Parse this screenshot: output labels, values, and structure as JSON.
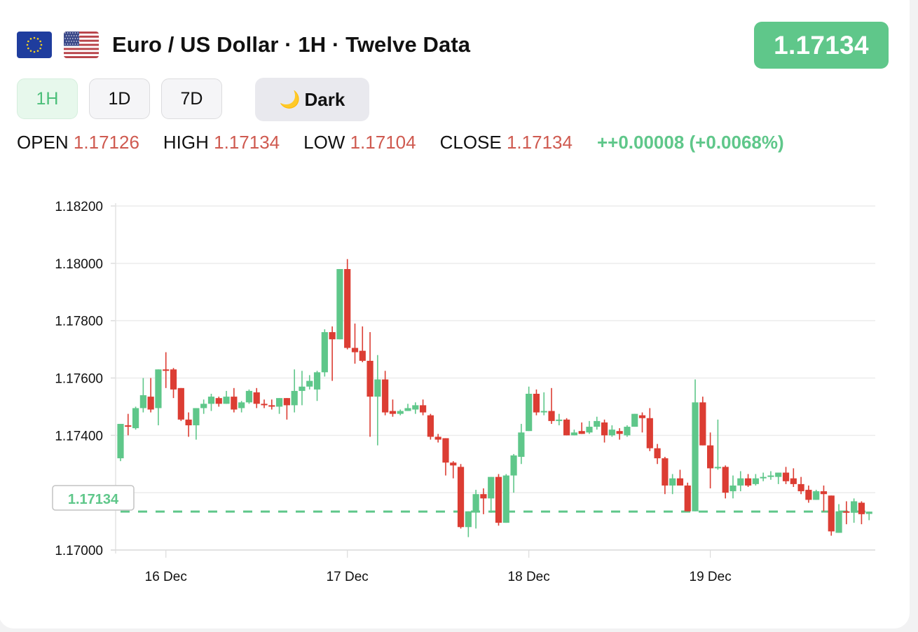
{
  "header": {
    "base_flag": "eu-flag",
    "quote_flag": "us-flag",
    "title": "Euro / US Dollar · 1H · Twelve Data",
    "price": "1.17134",
    "price_color": "#5fc78a"
  },
  "controls": {
    "timeframes": [
      {
        "label": "1H",
        "active": true
      },
      {
        "label": "1D",
        "active": false
      },
      {
        "label": "7D",
        "active": false
      }
    ],
    "theme_toggle": {
      "icon": "moon-icon",
      "icon_glyph": "🌙",
      "label": "Dark"
    }
  },
  "ohlc": {
    "open_label": "OPEN",
    "open": "1.17126",
    "high_label": "HIGH",
    "high": "1.17134",
    "low_label": "LOW",
    "low": "1.17104",
    "close_label": "CLOSE",
    "close": "1.17134",
    "change": "++0.00008 (+0.0068%)"
  },
  "colors": {
    "up": "#5fc78a",
    "down": "#dc3d33",
    "value_red": "#cf5a50",
    "grid": "#ececec"
  },
  "chart_data": {
    "type": "candlestick",
    "title": "Euro / US Dollar · 1H · Twelve Data",
    "xlabel": "",
    "ylabel": "",
    "ylim": [
      1.17,
      1.182
    ],
    "y_ticks": [
      "1.17000",
      "1.17200",
      "1.17400",
      "1.17600",
      "1.17800",
      "1.18000",
      "1.18200"
    ],
    "x_ticks": [
      {
        "label": "16 Dec",
        "index": 6
      },
      {
        "label": "17 Dec",
        "index": 30
      },
      {
        "label": "18 Dec",
        "index": 54
      },
      {
        "label": "19 Dec",
        "index": 78
      }
    ],
    "grid": true,
    "current_price_line": {
      "value": 1.17134,
      "label": "1.17134"
    },
    "interval": "1H",
    "start": "15 Dec 18:00",
    "candles": [
      [
        1.1732,
        1.1744,
        1.1731,
        1.1744
      ],
      [
        1.17435,
        1.17475,
        1.174,
        1.1743
      ],
      [
        1.17425,
        1.175,
        1.1742,
        1.17495
      ],
      [
        1.17495,
        1.176,
        1.1748,
        1.1754
      ],
      [
        1.17535,
        1.176,
        1.1748,
        1.1749
      ],
      [
        1.17495,
        1.1763,
        1.17435,
        1.1763
      ],
      [
        1.1763,
        1.1769,
        1.17565,
        1.17625
      ],
      [
        1.1763,
        1.17635,
        1.1753,
        1.1756
      ],
      [
        1.17565,
        1.17565,
        1.1745,
        1.17455
      ],
      [
        1.17455,
        1.1748,
        1.17395,
        1.17435
      ],
      [
        1.17435,
        1.17495,
        1.17385,
        1.17495
      ],
      [
        1.17495,
        1.17525,
        1.17475,
        1.1751
      ],
      [
        1.1751,
        1.17545,
        1.17485,
        1.17535
      ],
      [
        1.1753,
        1.17535,
        1.175,
        1.1751
      ],
      [
        1.1751,
        1.17555,
        1.1751,
        1.17535
      ],
      [
        1.17535,
        1.17565,
        1.1748,
        1.1749
      ],
      [
        1.17495,
        1.1752,
        1.1748,
        1.17515
      ],
      [
        1.17515,
        1.1756,
        1.1751,
        1.17555
      ],
      [
        1.1755,
        1.17565,
        1.17495,
        1.1751
      ],
      [
        1.1751,
        1.17525,
        1.17495,
        1.17505
      ],
      [
        1.17505,
        1.17525,
        1.1749,
        1.175
      ],
      [
        1.175,
        1.1753,
        1.17475,
        1.1753
      ],
      [
        1.1753,
        1.1753,
        1.17455,
        1.17505
      ],
      [
        1.17505,
        1.1763,
        1.1748,
        1.17555
      ],
      [
        1.17555,
        1.17625,
        1.17505,
        1.1757
      ],
      [
        1.1757,
        1.1761,
        1.1756,
        1.1759
      ],
      [
        1.1756,
        1.17625,
        1.1752,
        1.1762
      ],
      [
        1.1762,
        1.1777,
        1.17605,
        1.1776
      ],
      [
        1.1776,
        1.1778,
        1.1759,
        1.17735
      ],
      [
        1.17735,
        1.1798,
        1.17735,
        1.1798
      ],
      [
        1.1798,
        1.18015,
        1.177,
        1.17705
      ],
      [
        1.17705,
        1.1779,
        1.1765,
        1.1769
      ],
      [
        1.17695,
        1.1778,
        1.17655,
        1.1766
      ],
      [
        1.1766,
        1.1776,
        1.17395,
        1.17535
      ],
      [
        1.17535,
        1.1768,
        1.17365,
        1.17595
      ],
      [
        1.17595,
        1.17625,
        1.1747,
        1.1748
      ],
      [
        1.17485,
        1.17525,
        1.17465,
        1.17475
      ],
      [
        1.17475,
        1.1749,
        1.1747,
        1.17485
      ],
      [
        1.17485,
        1.1751,
        1.17485,
        1.17495
      ],
      [
        1.1749,
        1.17515,
        1.17475,
        1.17505
      ],
      [
        1.17505,
        1.17525,
        1.1747,
        1.1748
      ],
      [
        1.1747,
        1.17475,
        1.17385,
        1.17395
      ],
      [
        1.17395,
        1.17405,
        1.17375,
        1.17385
      ],
      [
        1.1739,
        1.1739,
        1.1726,
        1.17305
      ],
      [
        1.17305,
        1.1731,
        1.1725,
        1.17295
      ],
      [
        1.1729,
        1.173,
        1.17075,
        1.1708
      ],
      [
        1.1708,
        1.17135,
        1.17045,
        1.17135
      ],
      [
        1.17135,
        1.1721,
        1.17075,
        1.17195
      ],
      [
        1.17195,
        1.17215,
        1.17125,
        1.1718
      ],
      [
        1.1718,
        1.17255,
        1.1713,
        1.17255
      ],
      [
        1.17255,
        1.17265,
        1.17085,
        1.17095
      ],
      [
        1.17095,
        1.17265,
        1.17095,
        1.1726
      ],
      [
        1.1726,
        1.17335,
        1.172,
        1.1733
      ],
      [
        1.17325,
        1.1744,
        1.173,
        1.1741
      ],
      [
        1.17415,
        1.1757,
        1.17415,
        1.17545
      ],
      [
        1.17545,
        1.1756,
        1.1747,
        1.1748
      ],
      [
        1.1748,
        1.1755,
        1.1747,
        1.17485
      ],
      [
        1.17485,
        1.17565,
        1.1744,
        1.1745
      ],
      [
        1.1745,
        1.17475,
        1.17435,
        1.17455
      ],
      [
        1.17455,
        1.1746,
        1.174,
        1.174
      ],
      [
        1.174,
        1.1742,
        1.174,
        1.1741
      ],
      [
        1.17415,
        1.17445,
        1.17405,
        1.17405
      ],
      [
        1.1741,
        1.1745,
        1.17405,
        1.1743
      ],
      [
        1.1743,
        1.17465,
        1.1742,
        1.1745
      ],
      [
        1.17445,
        1.17455,
        1.17375,
        1.174
      ],
      [
        1.174,
        1.17435,
        1.17395,
        1.1742
      ],
      [
        1.17415,
        1.17425,
        1.17385,
        1.17405
      ],
      [
        1.174,
        1.17435,
        1.17395,
        1.1743
      ],
      [
        1.1743,
        1.17475,
        1.1743,
        1.17475
      ],
      [
        1.1747,
        1.1748,
        1.1741,
        1.1746
      ],
      [
        1.1746,
        1.17495,
        1.17345,
        1.17355
      ],
      [
        1.17355,
        1.1737,
        1.173,
        1.1732
      ],
      [
        1.1732,
        1.17325,
        1.17195,
        1.17225
      ],
      [
        1.17225,
        1.17265,
        1.17195,
        1.1725
      ],
      [
        1.1725,
        1.1728,
        1.17225,
        1.17225
      ],
      [
        1.17225,
        1.17235,
        1.17135,
        1.17135
      ],
      [
        1.17135,
        1.17595,
        1.17135,
        1.17515
      ],
      [
        1.17515,
        1.17535,
        1.17365,
        1.17365
      ],
      [
        1.17365,
        1.1741,
        1.17215,
        1.17285
      ],
      [
        1.17285,
        1.17455,
        1.1728,
        1.1729
      ],
      [
        1.1729,
        1.17295,
        1.1718,
        1.172
      ],
      [
        1.17205,
        1.1726,
        1.1718,
        1.17225
      ],
      [
        1.17225,
        1.17275,
        1.17205,
        1.1725
      ],
      [
        1.1725,
        1.17265,
        1.1722,
        1.17225
      ],
      [
        1.1723,
        1.17265,
        1.17225,
        1.1725
      ],
      [
        1.1725,
        1.1727,
        1.1724,
        1.17255
      ],
      [
        1.17255,
        1.17275,
        1.17245,
        1.1726
      ],
      [
        1.17255,
        1.1727,
        1.1723,
        1.1727
      ],
      [
        1.1727,
        1.1729,
        1.1723,
        1.1724
      ],
      [
        1.1725,
        1.17285,
        1.1722,
        1.1723
      ],
      [
        1.1723,
        1.17255,
        1.17195,
        1.17205
      ],
      [
        1.1721,
        1.17225,
        1.17165,
        1.17175
      ],
      [
        1.17175,
        1.1721,
        1.17175,
        1.17205
      ],
      [
        1.17205,
        1.17225,
        1.17135,
        1.17195
      ],
      [
        1.1719,
        1.1719,
        1.1705,
        1.17065
      ],
      [
        1.1706,
        1.1716,
        1.1706,
        1.17135
      ],
      [
        1.17135,
        1.1717,
        1.1709,
        1.1713
      ],
      [
        1.1713,
        1.1718,
        1.17095,
        1.1717
      ],
      [
        1.17165,
        1.1717,
        1.1709,
        1.17125
      ],
      [
        1.17126,
        1.17134,
        1.17104,
        1.17134
      ]
    ],
    "candle_format": [
      "open",
      "high",
      "low",
      "close"
    ]
  }
}
